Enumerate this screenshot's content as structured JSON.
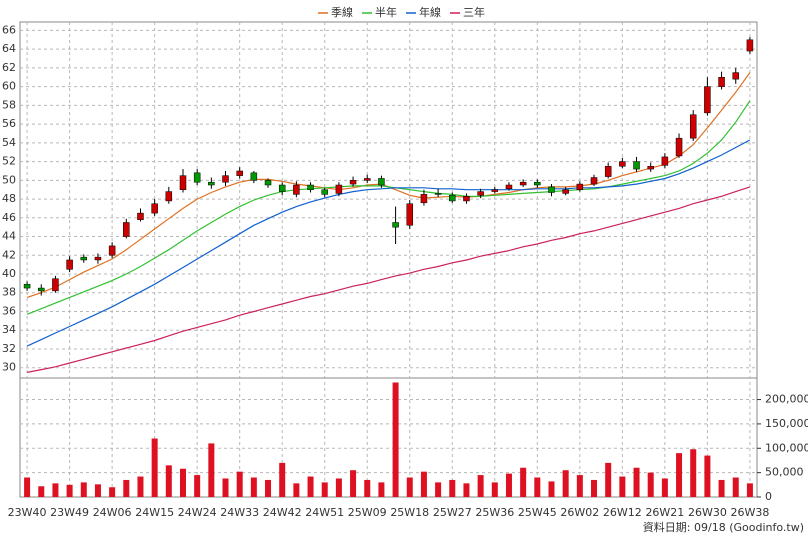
{
  "chart_data": {
    "type": "candlestick",
    "categories": [
      "23W40",
      null,
      null,
      "23W49",
      null,
      null,
      "24W06",
      null,
      null,
      "24W15",
      null,
      null,
      "24W24",
      null,
      null,
      "24W33",
      null,
      null,
      "24W42",
      null,
      null,
      "24W51",
      null,
      null,
      "25W09",
      null,
      null,
      "25W18",
      null,
      null,
      "25W27",
      null,
      null,
      "25W36",
      null,
      null,
      "25W45",
      null,
      null,
      "26W02",
      null,
      null,
      "26W12",
      null,
      null,
      "26W21",
      null,
      null,
      "26W30",
      null,
      null,
      "26W38"
    ],
    "open": [
      38.9,
      38.5,
      38.2,
      40.5,
      41.8,
      41.5,
      42.0,
      44.0,
      45.8,
      46.5,
      47.8,
      49.0,
      50.8,
      49.8,
      49.8,
      50.5,
      50.8,
      50.0,
      49.5,
      48.5,
      49.5,
      49.0,
      48.6,
      49.6,
      50.0,
      50.2,
      45.5,
      45.2,
      47.6,
      48.6,
      48.4,
      47.8,
      48.4,
      48.8,
      49.1,
      49.5,
      49.8,
      49.3,
      48.6,
      49.0,
      49.6,
      50.4,
      51.5,
      52.0,
      51.2,
      51.6,
      52.6,
      54.5,
      57.2,
      60.0,
      60.8,
      63.8
    ],
    "high": [
      39.2,
      38.9,
      39.8,
      41.9,
      42.1,
      42.2,
      43.4,
      45.9,
      47.0,
      48.0,
      49.3,
      51.2,
      51.2,
      50.3,
      51.0,
      51.4,
      51.0,
      50.2,
      49.8,
      49.9,
      49.8,
      49.2,
      49.8,
      50.4,
      50.6,
      50.5,
      47.2,
      47.9,
      49.0,
      49.1,
      48.7,
      48.6,
      49.1,
      49.3,
      49.8,
      50.1,
      50.1,
      49.6,
      49.3,
      49.9,
      50.6,
      51.9,
      52.4,
      52.5,
      51.9,
      52.9,
      55.0,
      57.5,
      61.0,
      61.6,
      62.0,
      65.3
    ],
    "low": [
      38.2,
      37.7,
      38.0,
      40.2,
      41.2,
      41.1,
      41.7,
      43.8,
      45.6,
      46.2,
      47.5,
      48.7,
      49.5,
      49.1,
      49.4,
      50.2,
      49.7,
      49.2,
      48.4,
      48.2,
      48.7,
      48.2,
      48.3,
      49.3,
      49.7,
      49.2,
      43.2,
      44.8,
      47.3,
      48.2,
      47.6,
      47.5,
      48.1,
      48.6,
      48.9,
      49.3,
      49.2,
      48.3,
      48.4,
      48.8,
      49.4,
      50.2,
      51.3,
      50.9,
      50.9,
      51.3,
      52.4,
      54.2,
      56.9,
      59.7,
      60.3,
      63.5
    ],
    "close": [
      38.5,
      38.2,
      39.5,
      41.5,
      41.5,
      41.8,
      43.0,
      45.5,
      46.5,
      47.5,
      48.8,
      50.5,
      49.8,
      49.5,
      50.5,
      51.0,
      50.0,
      49.5,
      48.8,
      49.5,
      49.0,
      48.5,
      49.5,
      50.0,
      50.2,
      49.5,
      45.0,
      47.5,
      48.5,
      48.5,
      47.8,
      48.3,
      48.8,
      49.0,
      49.5,
      49.8,
      49.5,
      48.7,
      49.0,
      49.6,
      50.3,
      51.5,
      52.0,
      51.2,
      51.5,
      52.5,
      54.5,
      57.0,
      60.0,
      61.0,
      61.5,
      65.0
    ],
    "up_color": "#cc0000",
    "down_color": "#009900",
    "series": [
      {
        "name": "季線",
        "color": "#e07020",
        "values": [
          37.5,
          38.0,
          38.6,
          39.4,
          40.2,
          40.9,
          41.6,
          42.6,
          43.7,
          44.8,
          45.9,
          47.0,
          48.0,
          48.7,
          49.3,
          49.8,
          50.1,
          50.1,
          49.9,
          49.6,
          49.4,
          49.2,
          49.0,
          49.2,
          49.5,
          49.6,
          49.0,
          48.4,
          48.1,
          48.2,
          48.3,
          48.2,
          48.3,
          48.5,
          48.7,
          49.0,
          49.2,
          49.3,
          49.3,
          49.4,
          49.6,
          50.0,
          50.5,
          50.9,
          51.3,
          51.7,
          52.6,
          53.8,
          55.6,
          57.5,
          59.4,
          61.5
        ]
      },
      {
        "name": "半年",
        "color": "#30c030",
        "values": [
          35.7,
          36.3,
          36.9,
          37.5,
          38.1,
          38.7,
          39.3,
          40.0,
          40.8,
          41.7,
          42.6,
          43.6,
          44.6,
          45.5,
          46.4,
          47.2,
          47.9,
          48.4,
          48.8,
          49.0,
          49.1,
          49.2,
          49.3,
          49.4,
          49.4,
          49.4,
          49.2,
          49.0,
          48.8,
          48.6,
          48.5,
          48.3,
          48.3,
          48.4,
          48.5,
          48.6,
          48.7,
          48.8,
          48.9,
          49.0,
          49.1,
          49.3,
          49.6,
          49.9,
          50.2,
          50.5,
          51.0,
          51.8,
          52.9,
          54.3,
          56.2,
          58.5
        ]
      },
      {
        "name": "年線",
        "color": "#1060d0",
        "values": [
          32.3,
          33.0,
          33.7,
          34.4,
          35.1,
          35.8,
          36.5,
          37.3,
          38.1,
          38.9,
          39.8,
          40.7,
          41.6,
          42.5,
          43.4,
          44.3,
          45.2,
          45.9,
          46.6,
          47.2,
          47.7,
          48.1,
          48.5,
          48.8,
          49.0,
          49.1,
          49.2,
          49.2,
          49.2,
          49.1,
          49.1,
          49.0,
          49.0,
          49.0,
          49.0,
          49.0,
          49.1,
          49.1,
          49.1,
          49.2,
          49.2,
          49.3,
          49.4,
          49.6,
          49.9,
          50.2,
          50.7,
          51.3,
          52.0,
          52.7,
          53.5,
          54.3
        ]
      },
      {
        "name": "三年",
        "color": "#cc2060",
        "values": [
          29.5,
          29.8,
          30.1,
          30.5,
          30.9,
          31.3,
          31.7,
          32.1,
          32.5,
          32.9,
          33.4,
          33.9,
          34.3,
          34.7,
          35.1,
          35.6,
          36.0,
          36.4,
          36.8,
          37.2,
          37.6,
          37.9,
          38.3,
          38.7,
          39.0,
          39.4,
          39.8,
          40.1,
          40.5,
          40.8,
          41.2,
          41.5,
          41.9,
          42.2,
          42.5,
          42.9,
          43.2,
          43.6,
          43.9,
          44.3,
          44.6,
          45.0,
          45.4,
          45.8,
          46.2,
          46.6,
          47.0,
          47.5,
          47.9,
          48.3,
          48.8,
          49.3
        ]
      }
    ],
    "ylim": [
      28.9,
      66.9
    ],
    "yticks": [
      30,
      32,
      34,
      36,
      38,
      40,
      42,
      44,
      46,
      48,
      50,
      52,
      54,
      56,
      58,
      60,
      62,
      64,
      66
    ],
    "grid": true,
    "volume": {
      "color": "#dd1122",
      "values": [
        40000,
        22000,
        28000,
        25000,
        30000,
        26000,
        20000,
        35000,
        42000,
        120000,
        65000,
        58000,
        45000,
        110000,
        38000,
        52000,
        40000,
        35000,
        70000,
        28000,
        42000,
        30000,
        38000,
        55000,
        35000,
        30000,
        235000,
        40000,
        52000,
        30000,
        35000,
        28000,
        45000,
        30000,
        48000,
        60000,
        40000,
        32000,
        55000,
        45000,
        35000,
        70000,
        42000,
        60000,
        50000,
        38000,
        90000,
        98000,
        85000,
        35000,
        40000,
        28000
      ],
      "ylim": [
        0,
        236000
      ],
      "yticks": [
        0,
        {
          "value": 50000,
          "label": "50,000"
        },
        {
          "value": 100000,
          "label": "100,000"
        },
        {
          "value": 150000,
          "label": "150,000"
        },
        {
          "value": 200000,
          "label": "200,000"
        }
      ]
    },
    "footer": "資料日期: 09/18 (Goodinfo.tw)"
  }
}
